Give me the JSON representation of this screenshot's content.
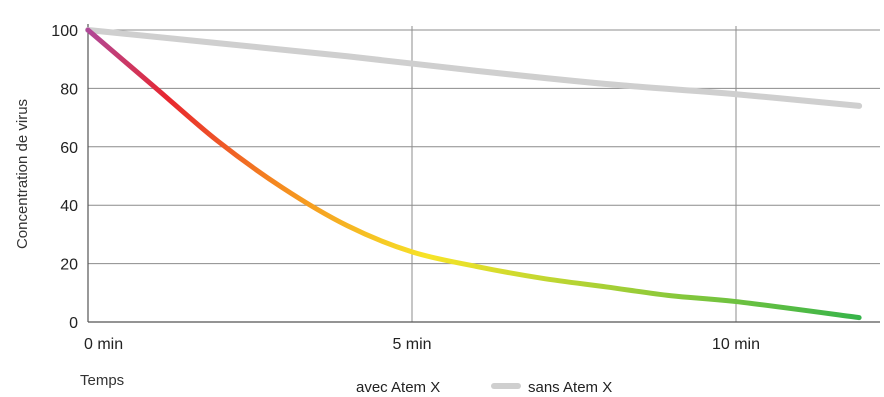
{
  "chart_data": {
    "type": "line",
    "title": "",
    "xlabel": "Temps",
    "ylabel": "Concentration de virus",
    "x_ticks": [
      {
        "value": 0,
        "label": "0 min"
      },
      {
        "value": 5,
        "label": "5 min"
      },
      {
        "value": 10,
        "label": "10 min"
      }
    ],
    "y_ticks": [
      {
        "value": 0,
        "label": "0"
      },
      {
        "value": 20,
        "label": "20"
      },
      {
        "value": 40,
        "label": "40"
      },
      {
        "value": 60,
        "label": "60"
      },
      {
        "value": 80,
        "label": "80"
      },
      {
        "value": 100,
        "label": "100"
      }
    ],
    "xlim": [
      0,
      11.9
    ],
    "ylim": [
      0,
      100
    ],
    "grid": true,
    "legend_position": "bottom-center",
    "series": [
      {
        "name": "avec Atem X",
        "color_stops": [
          "#b04898",
          "#e8262e",
          "#f58a1f",
          "#f7e427",
          "#34b34a"
        ],
        "x": [
          0,
          1,
          2,
          3,
          4,
          5,
          6,
          7,
          8,
          9,
          10,
          11.9
        ],
        "y": [
          100,
          81,
          62,
          46,
          33,
          24,
          19,
          15,
          12,
          9,
          7,
          1.5
        ]
      },
      {
        "name": "sans Atem X",
        "color": "#cfcfcf",
        "x": [
          0,
          2,
          4,
          6,
          8,
          10,
          11.9
        ],
        "y": [
          100,
          95.5,
          91,
          86,
          81.5,
          78,
          74
        ]
      }
    ]
  }
}
